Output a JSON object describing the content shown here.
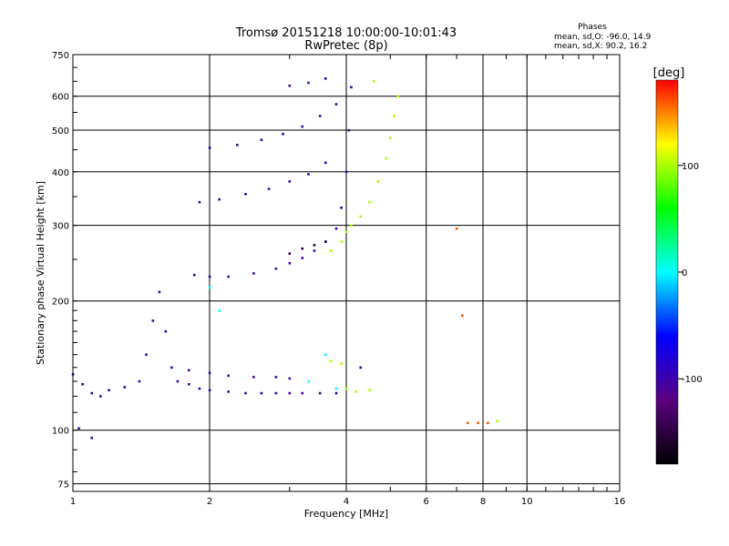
{
  "chart_data": {
    "type": "scatter",
    "title": "Tromsø 20151218 10:00:00-10:01:43",
    "subtitle": "RwPretec (8p)",
    "xlabel": "Frequency [MHz]",
    "ylabel": "Stationary phase Virtual Height [km]",
    "x_scale": "log",
    "y_scale": "log",
    "xlim": [
      1,
      16
    ],
    "ylim": [
      72,
      750
    ],
    "x_ticks": [
      1,
      2,
      4,
      6,
      8,
      10,
      16
    ],
    "y_ticks": [
      75,
      100,
      200,
      300,
      400,
      500,
      600,
      750
    ],
    "grid": true,
    "phase_info": {
      "heading": "Phases",
      "line_o": "mean, sd,O: -96.0, 14.9",
      "line_x": "mean, sd,X:  90.2, 16.2"
    },
    "colorbar": {
      "label": "[deg]",
      "ticks": [
        100,
        0,
        -100
      ],
      "range": [
        -180,
        180
      ],
      "colors": [
        "#000000",
        "#5a0080",
        "#0000ff",
        "#00ffff",
        "#00ff00",
        "#ffff00",
        "#ff0000"
      ]
    },
    "series": [
      {
        "phase": -100,
        "points": [
          [
            1.0,
            135
          ],
          [
            1.05,
            128
          ],
          [
            1.1,
            122
          ],
          [
            1.15,
            120
          ],
          [
            1.2,
            124
          ],
          [
            1.3,
            126
          ],
          [
            1.4,
            130
          ],
          [
            1.45,
            150
          ],
          [
            1.5,
            180
          ],
          [
            1.55,
            210
          ],
          [
            1.6,
            170
          ],
          [
            1.65,
            140
          ],
          [
            1.7,
            130
          ],
          [
            1.8,
            128
          ],
          [
            1.9,
            125
          ],
          [
            2.0,
            124
          ],
          [
            2.2,
            123
          ],
          [
            2.4,
            122
          ],
          [
            2.6,
            122
          ],
          [
            2.8,
            122
          ],
          [
            3.0,
            122
          ],
          [
            3.2,
            122
          ],
          [
            3.5,
            122
          ],
          [
            1.8,
            138
          ],
          [
            2.0,
            136
          ],
          [
            2.2,
            134
          ],
          [
            2.5,
            133
          ],
          [
            2.8,
            133
          ],
          [
            3.0,
            132
          ],
          [
            1.85,
            230
          ],
          [
            2.0,
            228
          ],
          [
            2.2,
            228
          ],
          [
            2.5,
            232
          ],
          [
            2.8,
            238
          ],
          [
            3.0,
            245
          ],
          [
            3.2,
            252
          ],
          [
            3.4,
            262
          ],
          [
            3.6,
            275
          ],
          [
            3.8,
            295
          ],
          [
            3.9,
            330
          ],
          [
            4.0,
            400
          ],
          [
            4.05,
            500
          ],
          [
            4.1,
            630
          ],
          [
            1.9,
            340
          ],
          [
            2.1,
            345
          ],
          [
            2.4,
            355
          ],
          [
            2.7,
            365
          ],
          [
            3.0,
            380
          ],
          [
            3.3,
            395
          ],
          [
            3.6,
            420
          ],
          [
            2.0,
            455
          ],
          [
            2.3,
            462
          ],
          [
            2.6,
            475
          ],
          [
            2.9,
            490
          ],
          [
            3.2,
            510
          ],
          [
            3.5,
            540
          ],
          [
            3.8,
            575
          ],
          [
            3.0,
            635
          ],
          [
            3.3,
            645
          ],
          [
            3.6,
            660
          ],
          [
            4.3,
            140
          ],
          [
            3.8,
            122
          ],
          [
            1.03,
            101
          ],
          [
            1.1,
            96
          ]
        ]
      },
      {
        "phase": -150,
        "points": [
          [
            3.0,
            258
          ],
          [
            3.2,
            265
          ],
          [
            3.4,
            270
          ],
          [
            3.6,
            275
          ]
        ]
      },
      {
        "phase": 0,
        "points": [
          [
            2.0,
            215
          ],
          [
            2.1,
            190
          ],
          [
            3.3,
            130
          ],
          [
            3.8,
            125
          ],
          [
            3.6,
            150
          ]
        ]
      },
      {
        "phase": 100,
        "points": [
          [
            3.7,
            262
          ],
          [
            3.9,
            275
          ],
          [
            4.0,
            290
          ],
          [
            4.1,
            300
          ],
          [
            4.3,
            315
          ],
          [
            4.5,
            340
          ],
          [
            4.7,
            380
          ],
          [
            4.9,
            430
          ],
          [
            5.0,
            480
          ],
          [
            5.1,
            540
          ],
          [
            5.2,
            600
          ],
          [
            4.6,
            650
          ],
          [
            4.0,
            125
          ],
          [
            4.2,
            123
          ],
          [
            4.5,
            124
          ],
          [
            3.7,
            145
          ],
          [
            3.9,
            143
          ],
          [
            8.6,
            105
          ]
        ]
      },
      {
        "phase": 160,
        "points": [
          [
            7.2,
            185
          ],
          [
            7.4,
            104
          ],
          [
            7.8,
            104
          ],
          [
            8.2,
            104
          ],
          [
            7.0,
            295
          ]
        ]
      }
    ]
  }
}
